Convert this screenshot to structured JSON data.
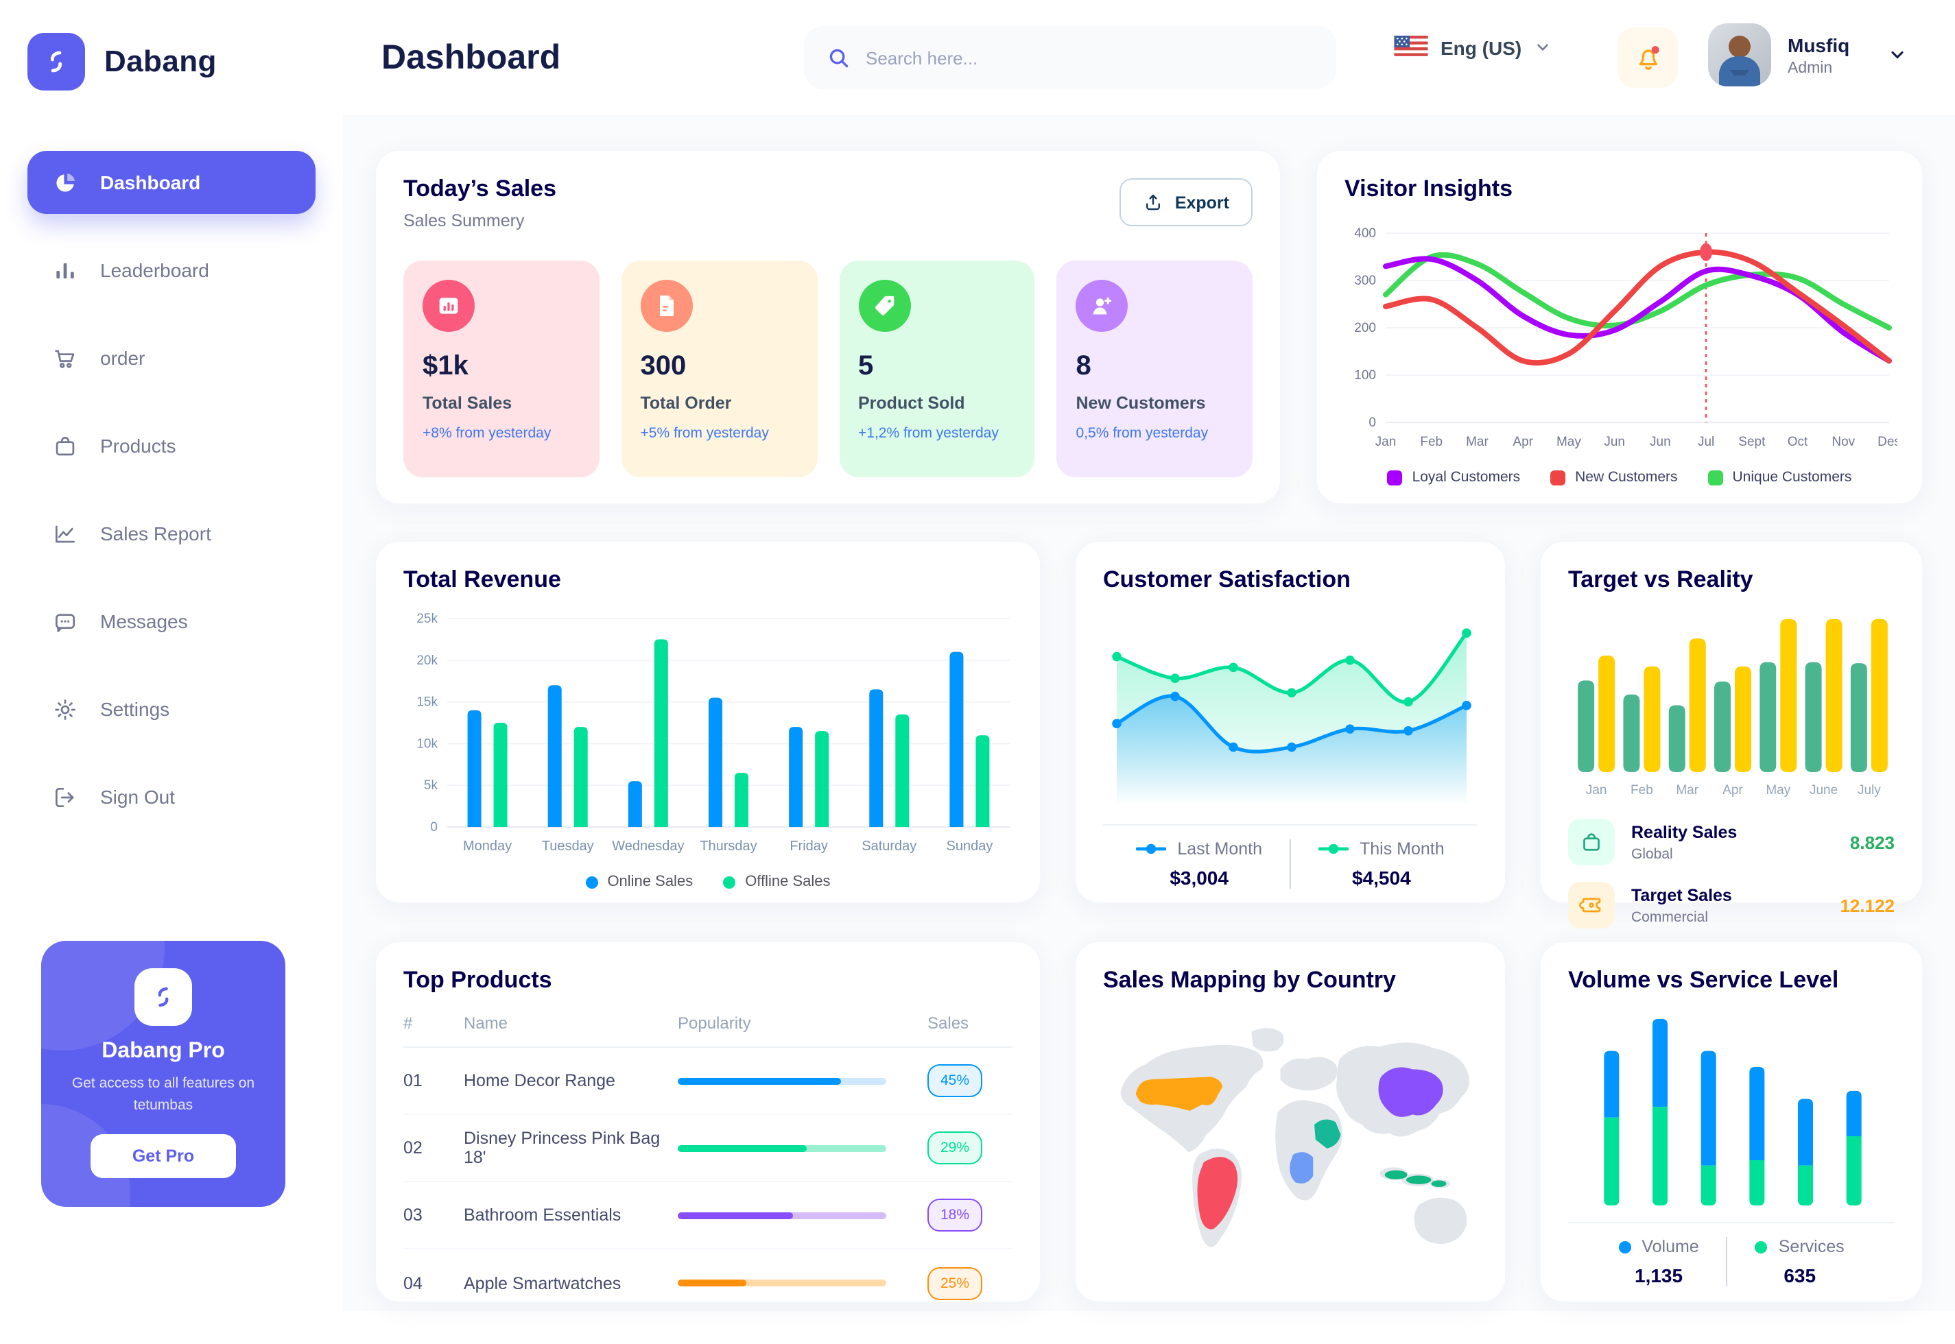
{
  "brand": {
    "name": "Dabang"
  },
  "header": {
    "title": "Dashboard",
    "search": {
      "placeholder": "Search here..."
    },
    "language": {
      "label": "Eng (US)"
    },
    "user": {
      "name": "Musfiq",
      "role": "Admin"
    }
  },
  "sidebar": {
    "items": [
      {
        "label": "Dashboard",
        "icon": "pie-chart-icon",
        "active": true
      },
      {
        "label": "Leaderboard",
        "icon": "bar-chart-icon",
        "active": false
      },
      {
        "label": "order",
        "icon": "cart-icon",
        "active": false
      },
      {
        "label": "Products",
        "icon": "bag-icon",
        "active": false
      },
      {
        "label": "Sales Report",
        "icon": "line-chart-icon",
        "active": false
      },
      {
        "label": "Messages",
        "icon": "message-icon",
        "active": false
      },
      {
        "label": "Settings",
        "icon": "gear-icon",
        "active": false
      },
      {
        "label": "Sign Out",
        "icon": "sign-out-icon",
        "active": false
      }
    ],
    "pro": {
      "title": "Dabang Pro",
      "description": "Get access to all features on tetumbas",
      "cta": "Get Pro"
    }
  },
  "todays_sales": {
    "title": "Today’s Sales",
    "subtitle": "Sales Summery",
    "export_label": "Export",
    "delta_color": "#4079ED",
    "cards": [
      {
        "value": "$1k",
        "label": "Total Sales",
        "delta": "+8% from yesterday",
        "bg": "#FFE2E5",
        "icon_bg": "#FA5A7D",
        "icon": "stats-icon"
      },
      {
        "value": "300",
        "label": "Total Order",
        "delta": "+5% from yesterday",
        "bg": "#FFF4DE",
        "icon_bg": "#FF947A",
        "icon": "receipt-icon"
      },
      {
        "value": "5",
        "label": "Product Sold",
        "delta": "+1,2% from yesterday",
        "bg": "#DCFCE7",
        "icon_bg": "#3CD856",
        "icon": "tag-icon"
      },
      {
        "value": "8",
        "label": "New Customers",
        "delta": "0,5% from yesterday",
        "bg": "#F3E8FF",
        "icon_bg": "#BF83FF",
        "icon": "user-plus-icon"
      }
    ]
  },
  "chart_data": [
    {
      "id": "visitor_insights",
      "type": "line",
      "title": "Visitor Insights",
      "x": [
        "Jan",
        "Feb",
        "Mar",
        "Apr",
        "May",
        "Jun",
        "Jun",
        "Jul",
        "Sept",
        "Oct",
        "Nov",
        "Des"
      ],
      "ylim": [
        0,
        400
      ],
      "yticks": [
        0,
        100,
        200,
        300,
        400
      ],
      "grid": true,
      "legend_position": "bottom",
      "series": [
        {
          "name": "Loyal Customers",
          "color": "#A700FF",
          "values": [
            330,
            345,
            300,
            225,
            185,
            195,
            255,
            320,
            310,
            270,
            190,
            130
          ]
        },
        {
          "name": "New Customers",
          "color": "#EF4444",
          "values": [
            245,
            260,
            200,
            130,
            145,
            235,
            330,
            360,
            340,
            275,
            205,
            130
          ]
        },
        {
          "name": "Unique Customers",
          "color": "#3CD856",
          "values": [
            270,
            350,
            335,
            275,
            220,
            205,
            235,
            290,
            312,
            305,
            250,
            200
          ]
        }
      ],
      "marker": {
        "series": "New Customers",
        "x_index": 7,
        "value": 360,
        "color": "#F64E60",
        "vline_style": "dotted"
      }
    },
    {
      "id": "total_revenue",
      "type": "bar",
      "title": "Total Revenue",
      "categories": [
        "Monday",
        "Tuesday",
        "Wednesday",
        "Thursday",
        "Friday",
        "Saturday",
        "Sunday"
      ],
      "ylim": [
        0,
        25000
      ],
      "yticks": [
        0,
        5000,
        10000,
        15000,
        20000,
        25000
      ],
      "ytick_labels": [
        "0",
        "5k",
        "10k",
        "15k",
        "20k",
        "25k"
      ],
      "grid": true,
      "legend_position": "bottom",
      "series": [
        {
          "name": "Online Sales",
          "color": "#0095FF",
          "values": [
            14000,
            17000,
            5500,
            15500,
            12000,
            16500,
            21000
          ]
        },
        {
          "name": "Offline Sales",
          "color": "#00E096",
          "values": [
            12500,
            12000,
            22500,
            6500,
            11500,
            13500,
            11000
          ]
        }
      ]
    },
    {
      "id": "customer_satisfaction",
      "type": "area",
      "title": "Customer Satisfaction",
      "ylim": [
        0,
        100
      ],
      "grid": false,
      "legend_position": "bottom",
      "series": [
        {
          "name": "Last Month",
          "color": "#0095FF",
          "total": "$3,004",
          "values": [
            45,
            60,
            32,
            32,
            42,
            41,
            55
          ]
        },
        {
          "name": "This Month",
          "color": "#00E096",
          "total": "$4,504",
          "values": [
            82,
            70,
            76,
            62,
            80,
            57,
            95
          ]
        }
      ]
    },
    {
      "id": "target_vs_reality",
      "type": "bar",
      "title": "Target vs Reality",
      "categories": [
        "Jan",
        "Feb",
        "Mar",
        "Apr",
        "May",
        "June",
        "July"
      ],
      "ylim": [
        0,
        14.5
      ],
      "grid": false,
      "legend_position": "bottom",
      "series": [
        {
          "name": "Reality Sales",
          "color": "#4AB58E",
          "values": [
            8.5,
            7.2,
            6.2,
            8.4,
            10.2,
            10.2,
            10.1
          ]
        },
        {
          "name": "Target Sales",
          "color": "#FFCF00",
          "values": [
            10.8,
            9.8,
            12.4,
            9.8,
            14.2,
            14.2,
            14.2
          ]
        }
      ],
      "legend": [
        {
          "label": "Reality Sales",
          "sub": "Global",
          "value": "8.823",
          "value_color": "#27AE60",
          "icon": "shopping-bag-icon",
          "icon_bg": "#E2FFF3",
          "icon_color": "#22A77F"
        },
        {
          "label": "Target Sales",
          "sub": "Commercial",
          "value": "12.122",
          "value_color": "#FFA412",
          "icon": "ticket-icon",
          "icon_bg": "#FFF4DE",
          "icon_color": "#FFA412"
        }
      ]
    },
    {
      "id": "volume_vs_service",
      "type": "stacked-bar",
      "title": "Volume vs Service Level",
      "ylim": [
        0,
        70
      ],
      "grid": false,
      "legend_position": "bottom",
      "series": [
        {
          "name": "Volume",
          "color": "#0095FF",
          "total": "1,135",
          "values": [
            25,
            33,
            43,
            35,
            25,
            17
          ]
        },
        {
          "name": "Services",
          "color": "#00E096",
          "total": "635",
          "values": [
            33,
            37,
            15,
            17,
            15,
            26
          ]
        }
      ]
    }
  ],
  "top_products": {
    "title": "Top Products",
    "headers": [
      "#",
      "Name",
      "Popularity",
      "Sales"
    ],
    "rows": [
      {
        "num": "01",
        "name": "Home Decor Range",
        "popularity": 78,
        "sales": "45%",
        "color": "#0095FF",
        "track": "#CFE8FF"
      },
      {
        "num": "02",
        "name": "Disney Princess Pink Bag 18'",
        "popularity": 62,
        "sales": "29%",
        "color": "#00E096",
        "track": "#9BF0D2"
      },
      {
        "num": "03",
        "name": "Bathroom Essentials",
        "popularity": 55,
        "sales": "18%",
        "color": "#884DFF",
        "track": "#D5BBF9"
      },
      {
        "num": "04",
        "name": "Apple Smartwatches",
        "popularity": 33,
        "sales": "25%",
        "color": "#FF8F0D",
        "track": "#FFD9A6"
      }
    ]
  },
  "sales_map": {
    "title": "Sales Mapping by Country",
    "countries": [
      {
        "name": "United States",
        "color": "#FFA412"
      },
      {
        "name": "Brazil",
        "color": "#F64E60"
      },
      {
        "name": "Saudi Arabia",
        "color": "#17B897"
      },
      {
        "name": "DR Congo",
        "color": "#6E9BF5"
      },
      {
        "name": "China",
        "color": "#8950FC"
      },
      {
        "name": "Indonesia",
        "color": "#10B981"
      }
    ]
  }
}
